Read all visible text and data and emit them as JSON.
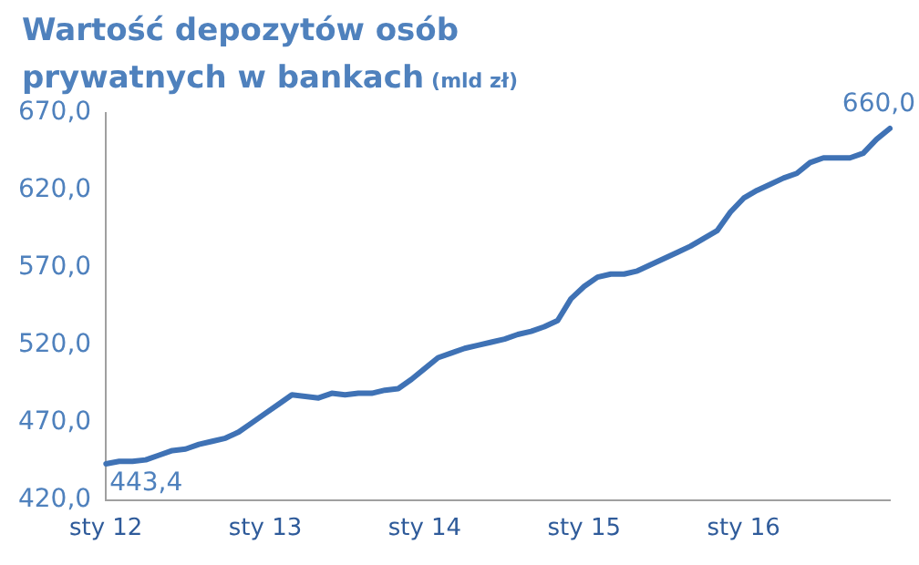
{
  "chart_data": {
    "type": "line",
    "title": "Wartość depozytów osób prywatnych w bankach",
    "subtitle": "(mld zł)",
    "categories": [
      "sty 12",
      null,
      null,
      null,
      null,
      null,
      null,
      null,
      null,
      null,
      null,
      null,
      "sty 13",
      null,
      null,
      null,
      null,
      null,
      null,
      null,
      null,
      null,
      null,
      null,
      "sty 14",
      null,
      null,
      null,
      null,
      null,
      null,
      null,
      null,
      null,
      null,
      null,
      "sty 15",
      null,
      null,
      null,
      null,
      null,
      null,
      null,
      null,
      null,
      null,
      null,
      "sty 16",
      null,
      null,
      null,
      null,
      null,
      null,
      null,
      null,
      null,
      null,
      null
    ],
    "series": [
      {
        "color": "#3f72b5",
        "values": [
          443.4,
          445,
          445,
          446,
          449,
          452,
          453,
          456,
          458,
          460,
          464,
          470,
          476,
          482,
          488,
          487,
          486,
          489,
          488,
          489,
          489,
          491,
          492,
          498,
          505,
          512,
          515,
          518,
          520,
          522,
          524,
          527,
          529,
          532,
          536,
          550,
          558,
          564,
          566,
          566,
          568,
          572,
          576,
          580,
          584,
          589,
          594,
          606,
          615,
          620,
          624,
          628,
          631,
          638,
          641,
          641,
          641,
          644,
          653,
          660.0
        ],
        "value_labels": [
          "443,4",
          null,
          null,
          null,
          null,
          null,
          null,
          null,
          null,
          null,
          null,
          null,
          null,
          null,
          null,
          null,
          null,
          null,
          null,
          null,
          null,
          null,
          null,
          null,
          null,
          null,
          null,
          null,
          null,
          null,
          null,
          null,
          null,
          null,
          null,
          null,
          null,
          null,
          null,
          null,
          null,
          null,
          null,
          null,
          null,
          null,
          null,
          null,
          null,
          null,
          null,
          null,
          null,
          null,
          null,
          null,
          null,
          null,
          null,
          "660,0"
        ]
      }
    ],
    "ylim": [
      420,
      670
    ],
    "yticks": [
      {
        "value": 420,
        "label": "420,0"
      },
      {
        "value": 470,
        "label": "470,0"
      },
      {
        "value": 520,
        "label": "520,0"
      },
      {
        "value": 570,
        "label": "570,0"
      },
      {
        "value": 620,
        "label": "620,0"
      },
      {
        "value": 670,
        "label": "670,0"
      }
    ],
    "grid": false,
    "legend": false,
    "marker": "none",
    "line_style": "solid"
  }
}
